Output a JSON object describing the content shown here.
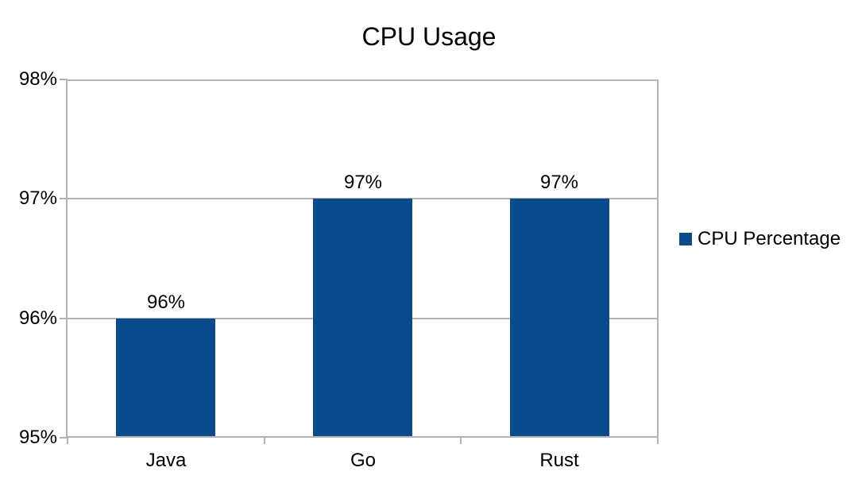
{
  "chart_data": {
    "type": "bar",
    "title": "CPU Usage",
    "categories": [
      "Java",
      "Go",
      "Rust"
    ],
    "series": [
      {
        "name": "CPU Percentage",
        "values": [
          96,
          97,
          97
        ]
      }
    ],
    "data_labels": [
      "96%",
      "97%",
      "97%"
    ],
    "ylim": [
      95,
      98
    ],
    "yticks": [
      {
        "value": 95,
        "label": "95%"
      },
      {
        "value": 96,
        "label": "96%"
      },
      {
        "value": 97,
        "label": "97%"
      },
      {
        "value": 98,
        "label": "98%"
      }
    ],
    "grid": "horizontal",
    "legend_position": "right",
    "bar_width_fraction": 0.505,
    "colors": {
      "bar": "#0b4a8b",
      "grid": "#b3b3b3",
      "axis": "#b3b3b3",
      "text": "#000000",
      "background": "#ffffff"
    }
  }
}
